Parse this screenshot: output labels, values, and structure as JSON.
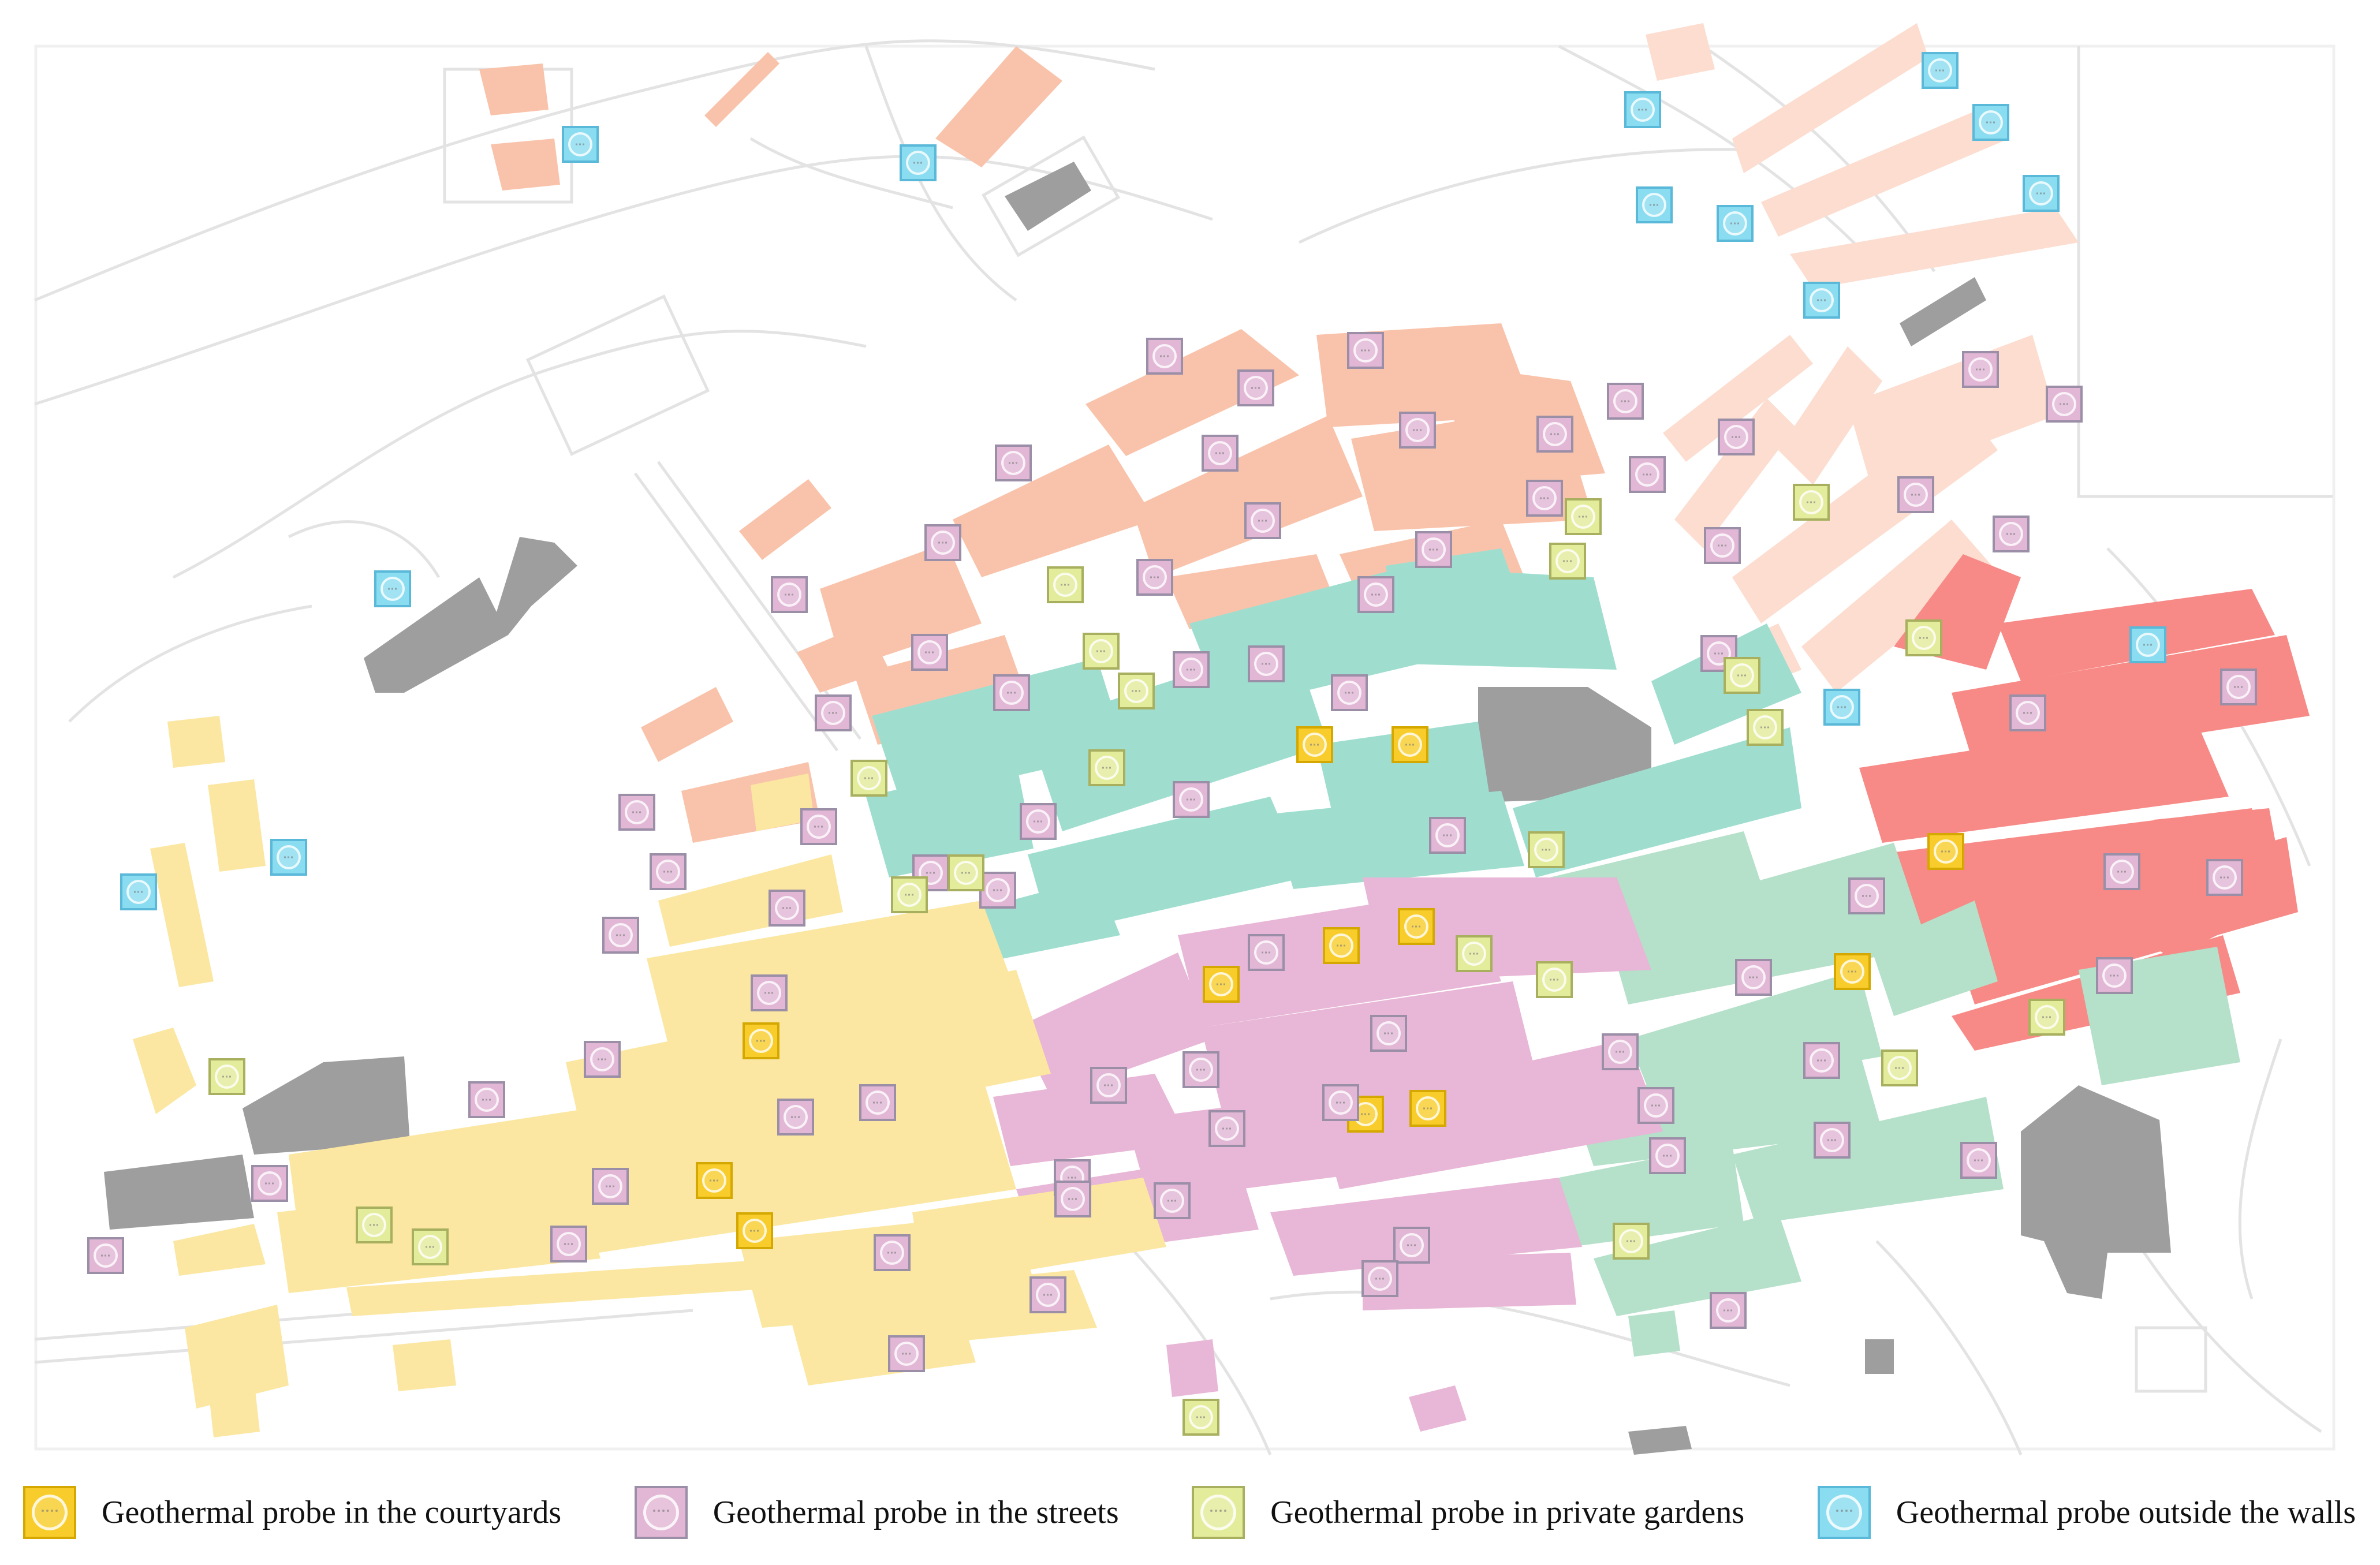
{
  "colors": {
    "courtyards": "#F8CD2B",
    "courtyards_border": "#D4A800",
    "streets": "#E2B6D5",
    "streets_border": "#9B8FA8",
    "gardens": "#E3EC9A",
    "gardens_border": "#A8B060",
    "outside": "#8ADCF0",
    "outside_border": "#5AB8D8",
    "zone_salmon": "#F9C3AB",
    "zone_salmon_light": "#FCDDD0",
    "zone_red": "#F78A86",
    "zone_teal": "#9FDECF",
    "zone_green": "#B5E0C9",
    "zone_pink": "#E8B6D6",
    "zone_yellow": "#FBE7A1",
    "zone_building": "#9E9E9E"
  },
  "legend": [
    {
      "key": "courtyards",
      "icon": "geothermal-probe-courtyard-icon",
      "label": "Geothermal probe in the courtyards"
    },
    {
      "key": "streets",
      "icon": "geothermal-probe-street-icon",
      "label": "Geothermal probe in the streets"
    },
    {
      "key": "gardens",
      "icon": "geothermal-probe-garden-icon",
      "label": "Geothermal probe in private gardens"
    },
    {
      "key": "outside",
      "icon": "geothermal-probe-outside-walls-icon",
      "label": "Geothermal probe outside the walls"
    }
  ]
}
